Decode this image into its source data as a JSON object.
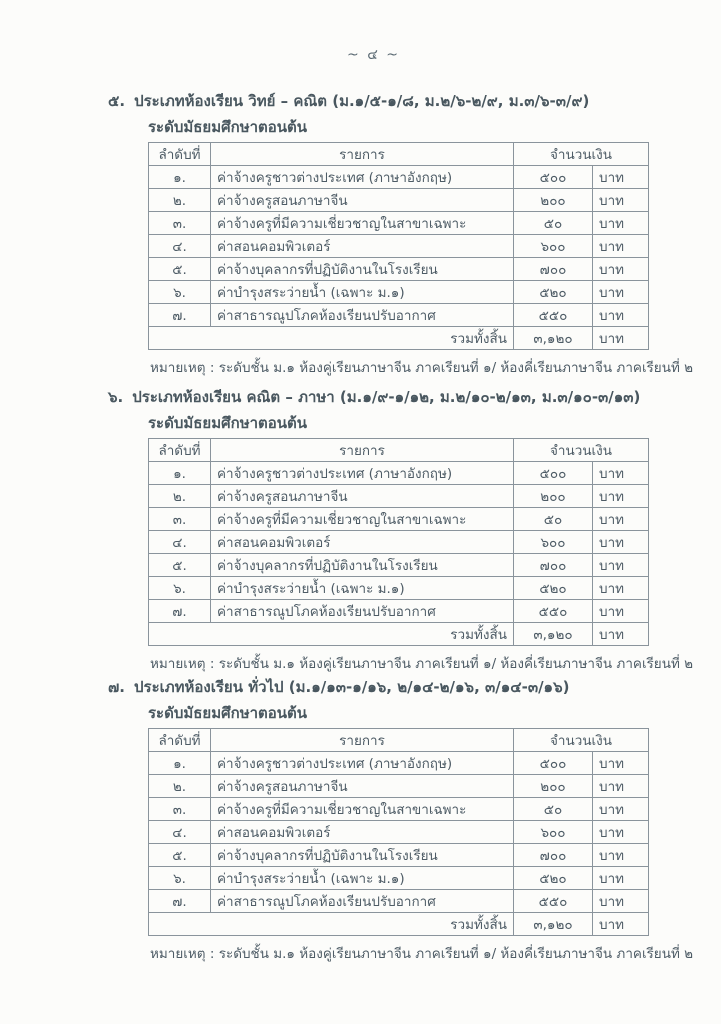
{
  "page": {
    "number_label": "~ ๔ ~"
  },
  "table_headers": {
    "no": "ลำดับที่",
    "item": "รายการ",
    "amount": "จำนวนเงิน"
  },
  "sections": [
    {
      "number": "๕.",
      "title": "ประเภทห้องเรียน วิทย์ – คณิต (ม.๑/๕-๑/๘, ม.๒/๖-๒/๙, ม.๓/๖-๓/๙)",
      "level": "ระดับมัธยมศึกษาตอนต้น",
      "rows": [
        {
          "no": "๑.",
          "item": "ค่าจ้างครูชาวต่างประเทศ (ภาษาอังกฤษ)",
          "amount": "๕๐๐",
          "unit": "บาท"
        },
        {
          "no": "๒.",
          "item": "ค่าจ้างครูสอนภาษาจีน",
          "amount": "๒๐๐",
          "unit": "บาท"
        },
        {
          "no": "๓.",
          "item": "ค่าจ้างครูที่มีความเชี่ยวชาญในสาขาเฉพาะ",
          "amount": "๕๐",
          "unit": "บาท"
        },
        {
          "no": "๔.",
          "item": "ค่าสอนคอมพิวเตอร์",
          "amount": "๖๐๐",
          "unit": "บาท"
        },
        {
          "no": "๕.",
          "item": "ค่าจ้างบุคลากรที่ปฏิบัติงานในโรงเรียน",
          "amount": "๗๐๐",
          "unit": "บาท"
        },
        {
          "no": "๖.",
          "item": "ค่าบำรุงสระว่ายน้ำ (เฉพาะ ม.๑)",
          "amount": "๕๒๐",
          "unit": "บาท"
        },
        {
          "no": "๗.",
          "item": "ค่าสาธารณูปโภคห้องเรียนปรับอากาศ",
          "amount": "๕๕๐",
          "unit": "บาท"
        }
      ],
      "total": {
        "label": "รวมทั้งสิ้น",
        "amount": "๓,๑๒๐",
        "unit": "บาท"
      },
      "note": "หมายเหตุ : ระดับชั้น ม.๑ ห้องคู่เรียนภาษาจีน ภาคเรียนที่ ๑/ ห้องคี่เรียนภาษาจีน ภาคเรียนที่ ๒"
    },
    {
      "number": "๖.",
      "title": "ประเภทห้องเรียน คณิต – ภาษา (ม.๑/๙-๑/๑๒, ม.๒/๑๐-๒/๑๓, ม.๓/๑๐-๓/๑๓)",
      "level": "ระดับมัธยมศึกษาตอนต้น",
      "rows": [
        {
          "no": "๑.",
          "item": "ค่าจ้างครูชาวต่างประเทศ (ภาษาอังกฤษ)",
          "amount": "๕๐๐",
          "unit": "บาท"
        },
        {
          "no": "๒.",
          "item": "ค่าจ้างครูสอนภาษาจีน",
          "amount": "๒๐๐",
          "unit": "บาท"
        },
        {
          "no": "๓.",
          "item": "ค่าจ้างครูที่มีความเชี่ยวชาญในสาขาเฉพาะ",
          "amount": "๕๐",
          "unit": "บาท"
        },
        {
          "no": "๔.",
          "item": "ค่าสอนคอมพิวเตอร์",
          "amount": "๖๐๐",
          "unit": "บาท"
        },
        {
          "no": "๕.",
          "item": "ค่าจ้างบุคลากรที่ปฏิบัติงานในโรงเรียน",
          "amount": "๗๐๐",
          "unit": "บาท"
        },
        {
          "no": "๖.",
          "item": "ค่าบำรุงสระว่ายน้ำ (เฉพาะ ม.๑)",
          "amount": "๕๒๐",
          "unit": "บาท"
        },
        {
          "no": "๗.",
          "item": "ค่าสาธารณูปโภคห้องเรียนปรับอากาศ",
          "amount": "๕๕๐",
          "unit": "บาท"
        }
      ],
      "total": {
        "label": "รวมทั้งสิ้น",
        "amount": "๓,๑๒๐",
        "unit": "บาท"
      },
      "note": "หมายเหตุ : ระดับชั้น ม.๑ ห้องคู่เรียนภาษาจีน ภาคเรียนที่ ๑/ ห้องคี่เรียนภาษาจีน ภาคเรียนที่ ๒"
    },
    {
      "number": "๗.",
      "title": "ประเภทห้องเรียน ทั่วไป (ม.๑/๑๓-๑/๑๖, ๒/๑๔-๒/๑๖, ๓/๑๔-๓/๑๖)",
      "level": "ระดับมัธยมศึกษาตอนต้น",
      "rows": [
        {
          "no": "๑.",
          "item": "ค่าจ้างครูชาวต่างประเทศ (ภาษาอังกฤษ)",
          "amount": "๕๐๐",
          "unit": "บาท"
        },
        {
          "no": "๒.",
          "item": "ค่าจ้างครูสอนภาษาจีน",
          "amount": "๒๐๐",
          "unit": "บาท"
        },
        {
          "no": "๓.",
          "item": "ค่าจ้างครูที่มีความเชี่ยวชาญในสาขาเฉพาะ",
          "amount": "๕๐",
          "unit": "บาท"
        },
        {
          "no": "๔.",
          "item": "ค่าสอนคอมพิวเตอร์",
          "amount": "๖๐๐",
          "unit": "บาท"
        },
        {
          "no": "๕.",
          "item": "ค่าจ้างบุคลากรที่ปฏิบัติงานในโรงเรียน",
          "amount": "๗๐๐",
          "unit": "บาท"
        },
        {
          "no": "๖.",
          "item": "ค่าบำรุงสระว่ายน้ำ (เฉพาะ ม.๑)",
          "amount": "๕๒๐",
          "unit": "บาท"
        },
        {
          "no": "๗.",
          "item": "ค่าสาธารณูปโภคห้องเรียนปรับอากาศ",
          "amount": "๕๕๐",
          "unit": "บาท"
        }
      ],
      "total": {
        "label": "รวมทั้งสิ้น",
        "amount": "๓,๑๒๐",
        "unit": "บาท"
      },
      "note": "หมายเหตุ : ระดับชั้น ม.๑ ห้องคู่เรียนภาษาจีน ภาคเรียนที่ ๑/ ห้องคี่เรียนภาษาจีน ภาคเรียนที่ ๒"
    }
  ]
}
